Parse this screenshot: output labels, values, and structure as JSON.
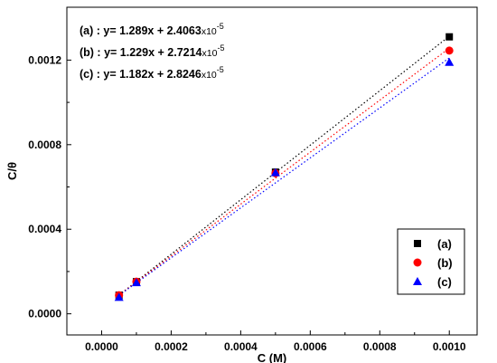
{
  "chart_data": {
    "type": "scatter",
    "xlabel": "C (M)",
    "ylabel": "C/θ",
    "xlim": [
      -0.0001,
      0.00108
    ],
    "ylim": [
      -0.0001,
      0.00145
    ],
    "xticks": [
      0.0,
      0.0002,
      0.0004,
      0.0006,
      0.0008,
      0.001
    ],
    "xtick_labels": [
      "0.0000",
      "0.0002",
      "0.0004",
      "0.0006",
      "0.0008",
      "0.0010"
    ],
    "yticks": [
      0.0,
      0.0004,
      0.0008,
      0.0012
    ],
    "ytick_labels": [
      "0.0000",
      "0.0004",
      "0.0008",
      "0.0012"
    ],
    "grid": false,
    "legend_position": "bottom-right",
    "series": [
      {
        "name": "(a)",
        "color": "#000000",
        "marker": "square",
        "line_style": "dotted",
        "x": [
          5e-05,
          0.0001,
          0.0005,
          0.001
        ],
        "y": [
          8.8e-05,
          0.000152,
          0.00067,
          0.00131
        ],
        "fit": {
          "slope": 1.289,
          "intercept": 2.4063e-05
        },
        "equation": {
          "prefix": "(a) : y= 1.289x + 2.4063",
          "times": "x10",
          "exponent": "-5"
        }
      },
      {
        "name": "(b)",
        "color": "#ff0000",
        "marker": "circle",
        "line_style": "dotted",
        "x": [
          5e-05,
          0.0001,
          0.0005,
          0.001
        ],
        "y": [
          8.8e-05,
          0.000152,
          0.000665,
          0.001245
        ],
        "fit": {
          "slope": 1.229,
          "intercept": 2.7214e-05
        },
        "equation": {
          "prefix": "(b) : y= 1.229x + 2.7214",
          "times": "x10",
          "exponent": "-5"
        }
      },
      {
        "name": "(c)",
        "color": "#0000ff",
        "marker": "triangle",
        "line_style": "dotted",
        "x": [
          5e-05,
          0.0001,
          0.0005,
          0.001
        ],
        "y": [
          7.8e-05,
          0.000148,
          0.000668,
          0.00119
        ],
        "fit": {
          "slope": 1.182,
          "intercept": 2.8246e-05
        },
        "equation": {
          "prefix": "(c) : y= 1.182x + 2.8246",
          "times": "x10",
          "exponent": "-5"
        }
      }
    ]
  }
}
